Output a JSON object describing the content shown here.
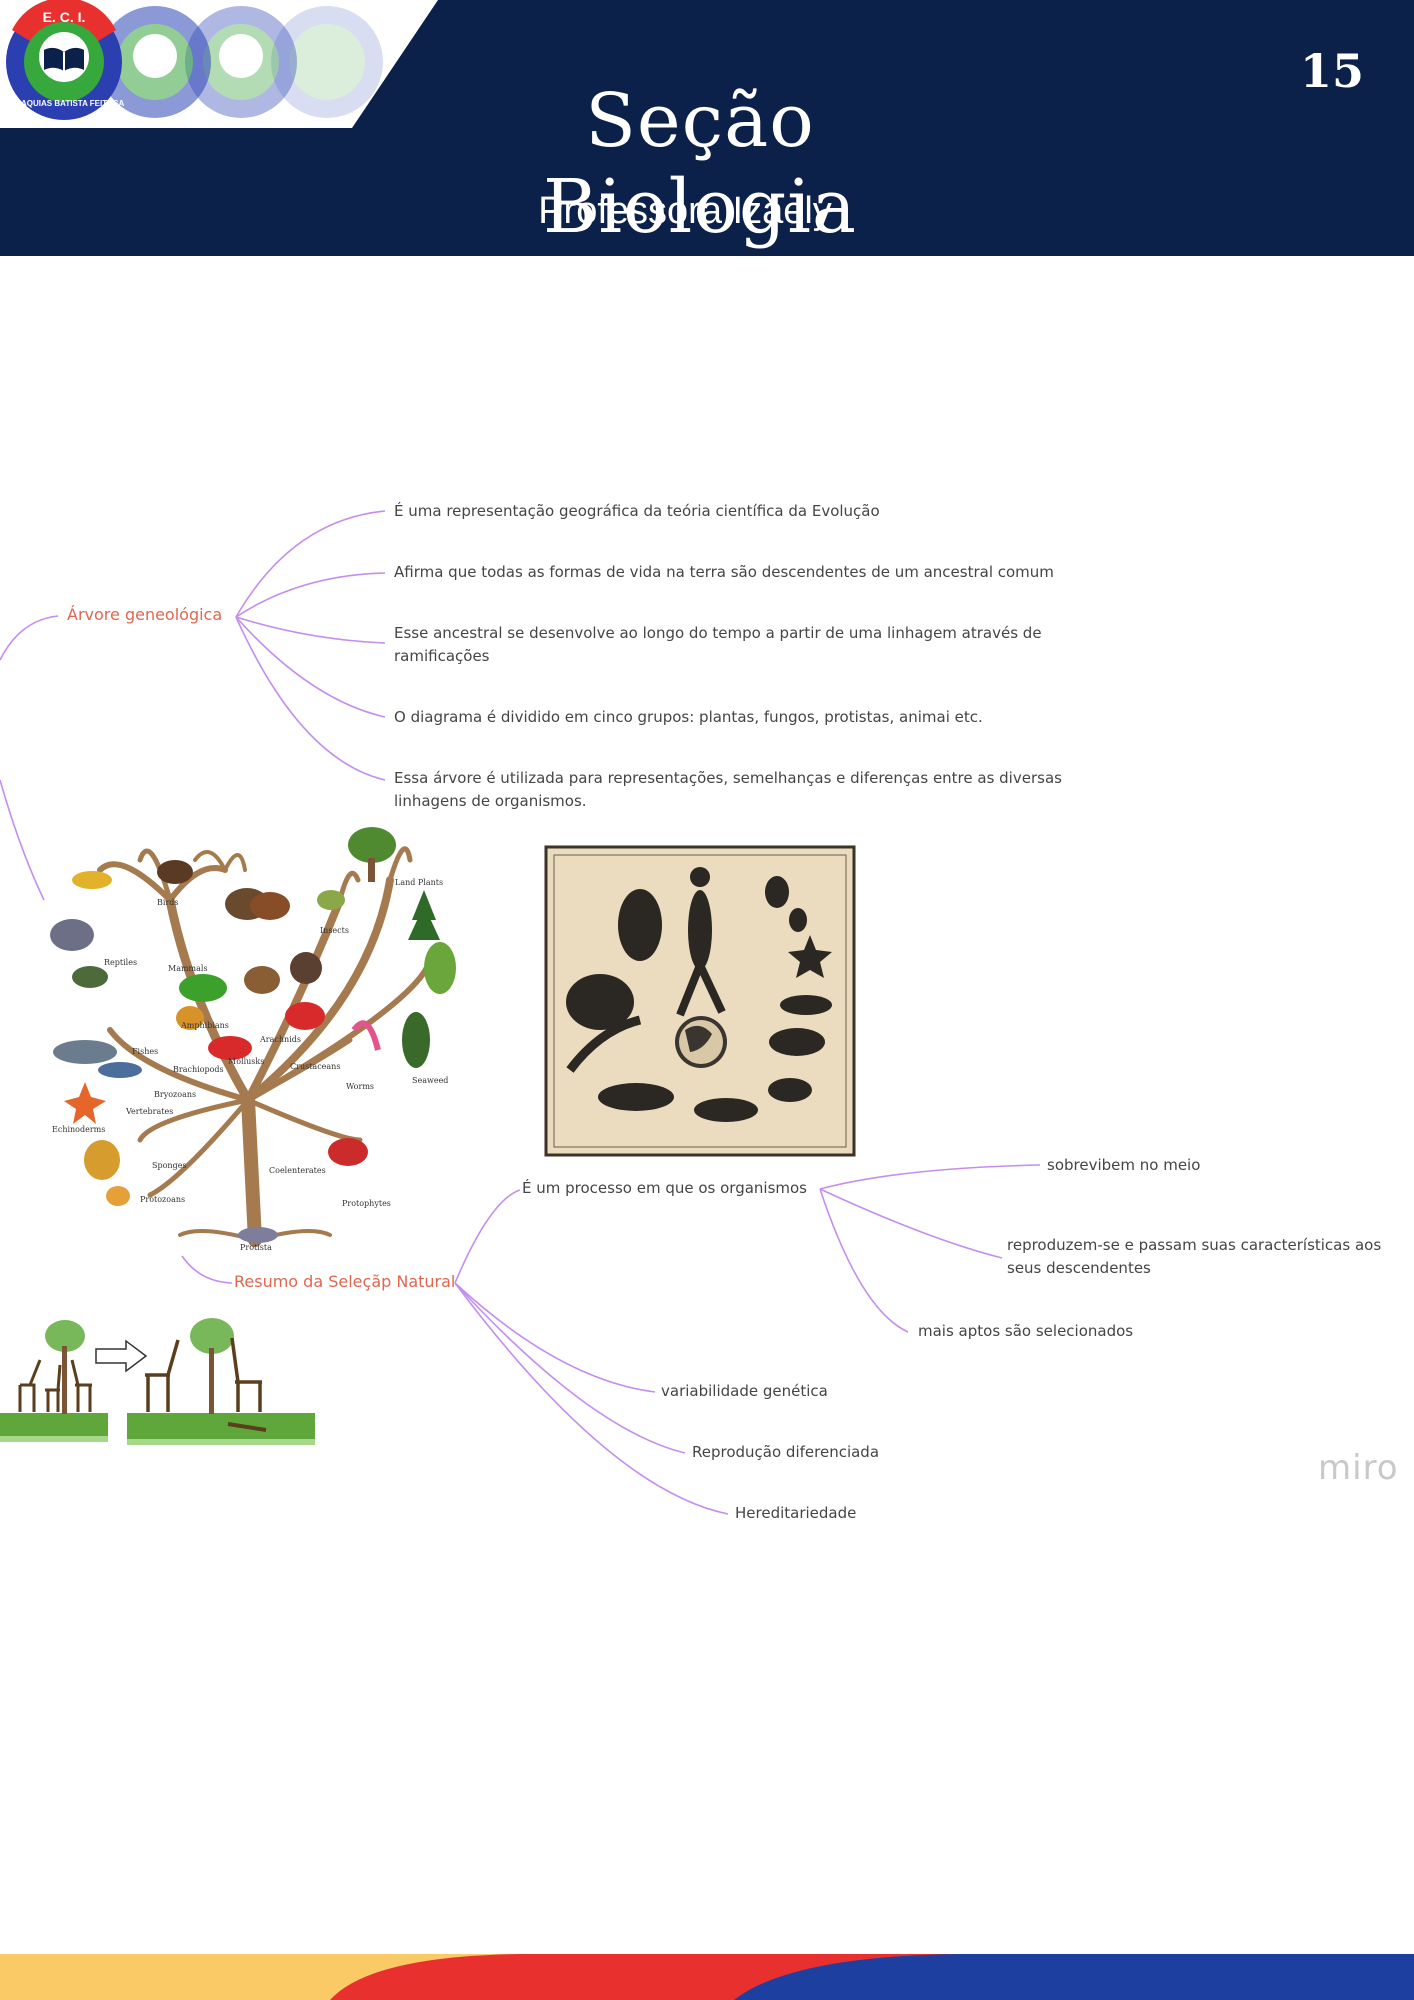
{
  "header": {
    "page_number": "15",
    "title": "Seção Biologia",
    "subtitle": "Professora Izaely",
    "logo": {
      "top_text": "E. C. I.",
      "ring_text": "MALAQUIAS BATISTA FEITOSA"
    }
  },
  "mindmap": {
    "arvore": {
      "topic": "Árvore geneológica",
      "items": [
        "É uma representação geográfica da teória científica da Evolução",
        "Afirma que todas as formas de vida na terra são descendentes de um ancestral comum",
        "Esse ancestral se desenvolve ao longo do tempo a partir de uma linhagem através de ramificações",
        "O diagrama é dividido em cinco grupos: plantas, fungos, protistas, animai etc.",
        "Essa árvore é utilizada para representações, semelhanças e diferenças entre as diversas linhagens de organismos."
      ]
    },
    "selecao": {
      "topic": "Resumo da Seleçãp Natural",
      "process": "É um processo em que os organismos",
      "process_items": [
        "sobrevibem no meio",
        "reproduzem-se e passam suas características aos seus descendentes",
        "mais aptos são selecionados"
      ],
      "items": [
        "variabilidade genética",
        "Reprodução diferenciada",
        "Hereditariedade"
      ]
    }
  },
  "tree_labels": [
    "Birds",
    "Land Plants",
    "Insects",
    "Reptiles",
    "Mammals",
    "Amphibians",
    "Arachnids",
    "Fishes",
    "Brachiopods",
    "Mollusks",
    "Crustaceans",
    "Worms",
    "Seaweed",
    "Bryozoans",
    "Vertebrates",
    "Echinoderms",
    "Sponges",
    "Coelenterates",
    "Protozoans",
    "Protophytes",
    "Protista"
  ],
  "watermark": "miro",
  "colors": {
    "header": "#0c2149",
    "topic": "#e0664f",
    "connector": "#c38ef0",
    "footer_yellow": "#f9ca65",
    "footer_red": "#e8312f",
    "footer_blue": "#1d40a0"
  }
}
